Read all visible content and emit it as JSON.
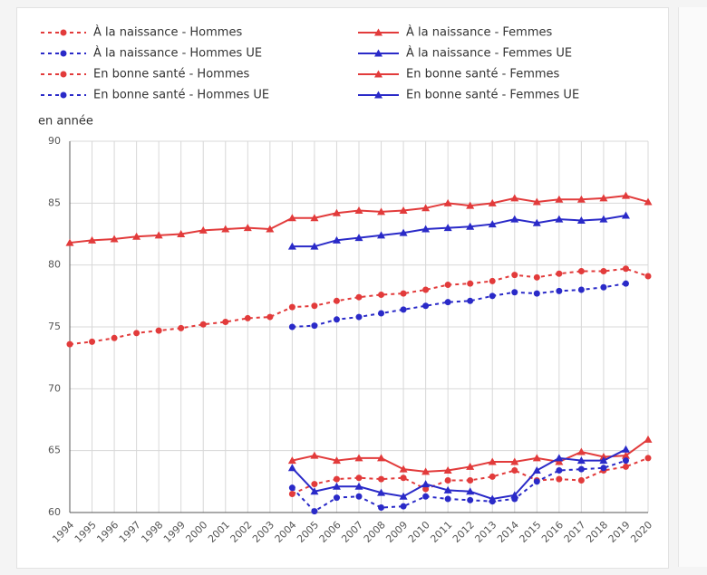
{
  "chart_data": {
    "type": "line",
    "y_label": "en année",
    "categories": [
      "1994",
      "1995",
      "1996",
      "1997",
      "1998",
      "1999",
      "2000",
      "2001",
      "2002",
      "2003",
      "2004",
      "2005",
      "2006",
      "2007",
      "2008",
      "2009",
      "2010",
      "2011",
      "2012",
      "2013",
      "2014",
      "2015",
      "2016",
      "2017",
      "2018",
      "2019",
      "2020"
    ],
    "ylim": [
      60,
      90
    ],
    "yticks": [
      60,
      65,
      70,
      75,
      80,
      85,
      90
    ],
    "grid": true,
    "series": [
      {
        "name": "À la naissance - Hommes",
        "color": "#e23b3b",
        "dashed": true,
        "marker": "circle",
        "values": [
          73.6,
          73.8,
          74.1,
          74.5,
          74.7,
          74.9,
          75.2,
          75.4,
          75.7,
          75.8,
          76.6,
          76.7,
          77.1,
          77.4,
          77.6,
          77.7,
          78.0,
          78.4,
          78.5,
          78.7,
          79.2,
          79.0,
          79.3,
          79.5,
          79.5,
          79.7,
          79.1
        ]
      },
      {
        "name": "À la naissance - Femmes",
        "color": "#e23b3b",
        "dashed": false,
        "marker": "triangle",
        "values": [
          81.8,
          82.0,
          82.1,
          82.3,
          82.4,
          82.5,
          82.8,
          82.9,
          83.0,
          82.9,
          83.8,
          83.8,
          84.2,
          84.4,
          84.3,
          84.4,
          84.6,
          85.0,
          84.8,
          85.0,
          85.4,
          85.1,
          85.3,
          85.3,
          85.4,
          85.6,
          85.1
        ]
      },
      {
        "name": "À la naissance - Hommes UE",
        "color": "#2a2ac8",
        "dashed": true,
        "marker": "circle",
        "values": [
          null,
          null,
          null,
          null,
          null,
          null,
          null,
          null,
          null,
          null,
          75.0,
          75.1,
          75.6,
          75.8,
          76.1,
          76.4,
          76.7,
          77.0,
          77.1,
          77.5,
          77.8,
          77.7,
          77.9,
          78.0,
          78.2,
          78.5,
          null
        ]
      },
      {
        "name": "À la naissance - Femmes UE",
        "color": "#2a2ac8",
        "dashed": false,
        "marker": "triangle",
        "values": [
          null,
          null,
          null,
          null,
          null,
          null,
          null,
          null,
          null,
          null,
          81.5,
          81.5,
          82.0,
          82.2,
          82.4,
          82.6,
          82.9,
          83.0,
          83.1,
          83.3,
          83.7,
          83.4,
          83.7,
          83.6,
          83.7,
          84.0,
          null
        ]
      },
      {
        "name": "En bonne santé - Hommes",
        "color": "#e23b3b",
        "dashed": true,
        "marker": "circle",
        "values": [
          null,
          null,
          null,
          null,
          null,
          null,
          null,
          null,
          null,
          null,
          61.5,
          62.3,
          62.7,
          62.8,
          62.7,
          62.8,
          61.9,
          62.6,
          62.6,
          62.9,
          63.4,
          62.6,
          62.7,
          62.6,
          63.4,
          63.7,
          64.4
        ]
      },
      {
        "name": "En bonne santé - Femmes",
        "color": "#e23b3b",
        "dashed": false,
        "marker": "triangle",
        "values": [
          null,
          null,
          null,
          null,
          null,
          null,
          null,
          null,
          null,
          null,
          64.2,
          64.6,
          64.2,
          64.4,
          64.4,
          63.5,
          63.3,
          63.4,
          63.7,
          64.1,
          64.1,
          64.4,
          64.1,
          64.9,
          64.5,
          64.6,
          65.9
        ]
      },
      {
        "name": "En bonne santé - Hommes UE",
        "color": "#2a2ac8",
        "dashed": true,
        "marker": "circle",
        "values": [
          null,
          null,
          null,
          null,
          null,
          null,
          null,
          null,
          null,
          null,
          62.0,
          60.1,
          61.2,
          61.3,
          60.4,
          60.5,
          61.3,
          61.1,
          61.0,
          60.9,
          61.1,
          62.5,
          63.4,
          63.5,
          63.6,
          64.2,
          null
        ]
      },
      {
        "name": "En bonne santé - Femmes UE",
        "color": "#2a2ac8",
        "dashed": false,
        "marker": "triangle",
        "values": [
          null,
          null,
          null,
          null,
          null,
          null,
          null,
          null,
          null,
          null,
          63.6,
          61.7,
          62.1,
          62.1,
          61.6,
          61.3,
          62.3,
          61.8,
          61.7,
          61.1,
          61.4,
          63.4,
          64.4,
          64.2,
          64.2,
          65.1,
          null
        ]
      }
    ]
  }
}
